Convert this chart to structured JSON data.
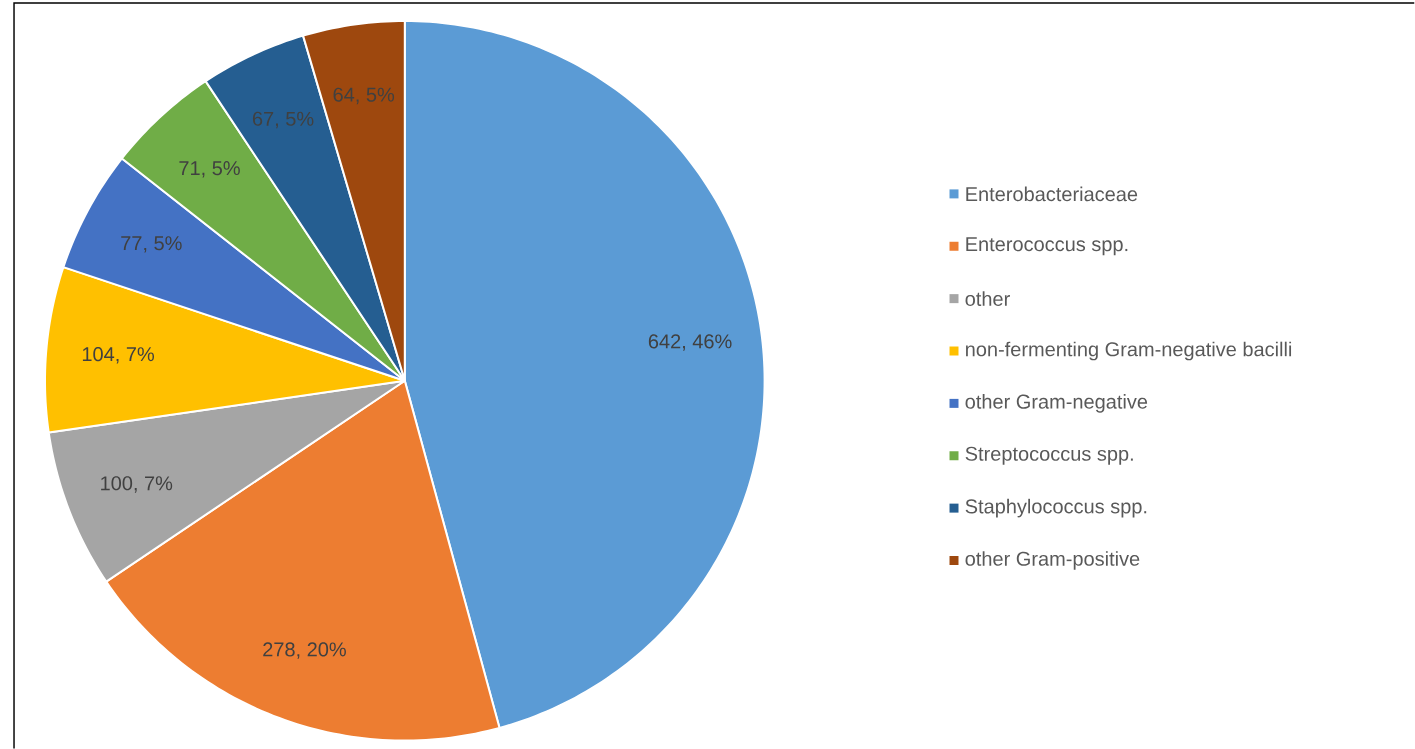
{
  "chart_data": {
    "type": "pie",
    "categories": [
      "Enterobacteriaceae",
      "Enterococcus spp.",
      "other",
      "non-fermenting Gram-negative bacilli",
      "other Gram-negative",
      "Streptococcus spp.",
      "Staphylococcus spp.",
      "other Gram-positive"
    ],
    "values": [
      642,
      278,
      100,
      104,
      77,
      71,
      67,
      64
    ],
    "colors": [
      "#5b9bd5",
      "#ed7d31",
      "#a5a5a5",
      "#ffc000",
      "#4472c4",
      "#70ad47",
      "#255e91",
      "#9e480e"
    ],
    "value_labels": [
      "642, 46%",
      "278, 20%",
      "100, 7%",
      "104, 7%",
      "77, 5%",
      "71, 5%",
      "67, 5%",
      "64, 5%"
    ],
    "legend": "right"
  }
}
